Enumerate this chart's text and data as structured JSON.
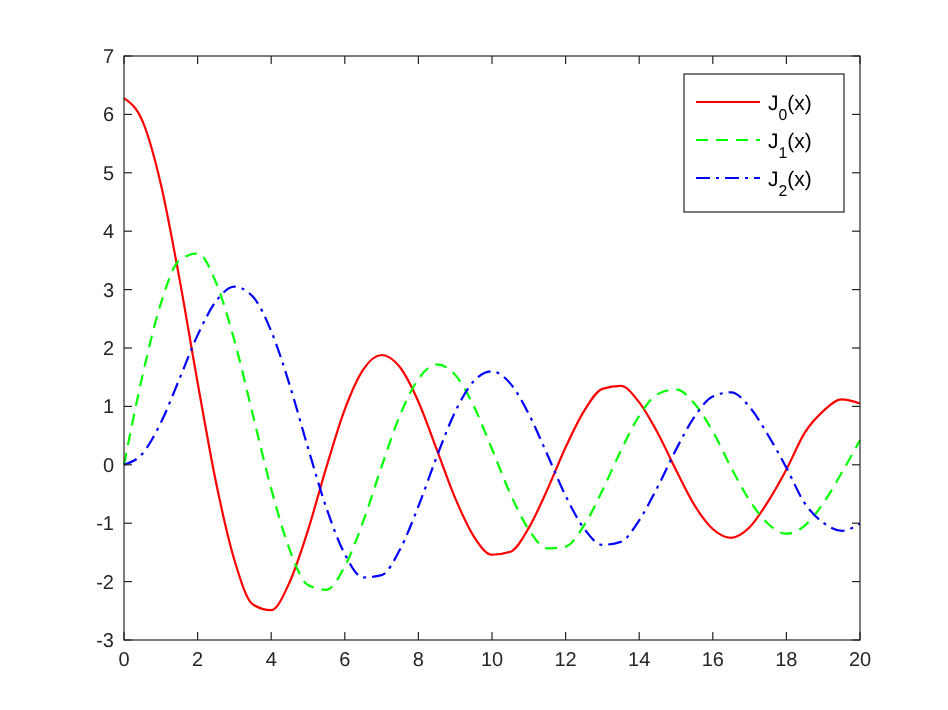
{
  "chart_data": {
    "type": "line",
    "x": [
      0,
      0.5,
      1,
      1.5,
      2,
      2.5,
      3,
      3.5,
      4,
      4.5,
      5,
      5.5,
      6,
      6.5,
      7,
      7.5,
      8,
      8.5,
      9,
      9.5,
      10,
      10.5,
      11,
      11.5,
      12,
      12.5,
      13,
      13.5,
      14,
      14.5,
      15,
      15.5,
      16,
      16.5,
      17,
      17.5,
      18,
      18.5,
      19,
      19.5,
      20
    ],
    "series": [
      {
        "name": "J$_{0}$(x)",
        "color": "#ff0000",
        "line_style": "solid",
        "values": [
          6.28,
          5.89,
          4.81,
          3.21,
          1.41,
          -0.3,
          -1.63,
          -2.39,
          -2.49,
          -2.01,
          -1.12,
          -0.04,
          0.95,
          1.63,
          1.88,
          1.67,
          1.08,
          0.26,
          -0.57,
          -1.22,
          -1.54,
          -1.49,
          -1.08,
          -0.43,
          0.3,
          0.92,
          1.3,
          1.35,
          1.07,
          0.55,
          -0.09,
          -0.69,
          -1.1,
          -1.25,
          -1.07,
          -0.63,
          -0.08,
          0.55,
          0.92,
          1.12,
          1.05
        ]
      },
      {
        "name": "J$_{1}$(x)",
        "color": "#00ff00",
        "line_style": "dashed",
        "values": [
          0,
          1.52,
          2.76,
          3.5,
          3.62,
          3.12,
          2.13,
          0.86,
          -0.41,
          -1.45,
          -2.06,
          -2.14,
          -1.74,
          -0.97,
          -0.03,
          0.85,
          1.47,
          1.72,
          1.54,
          1.01,
          0.27,
          -0.5,
          -1.11,
          -1.43,
          -1.4,
          -1.04,
          -0.44,
          0.24,
          0.84,
          1.21,
          1.29,
          1.05,
          0.57,
          -0.05,
          -0.61,
          -1.01,
          -1.18,
          -1.04,
          -0.66,
          -0.14,
          0.42
        ]
      },
      {
        "name": "J$_{2}$(x)",
        "color": "#0000ff",
        "line_style": "dashdot",
        "values": [
          0,
          0.19,
          0.72,
          1.46,
          2.22,
          2.8,
          3.05,
          2.88,
          2.29,
          1.37,
          0.29,
          -0.74,
          -1.53,
          -1.93,
          -1.89,
          -1.45,
          -0.71,
          0.14,
          0.91,
          1.43,
          1.6,
          1.39,
          0.87,
          0.18,
          -0.53,
          -1.09,
          -1.37,
          -1.32,
          -0.95,
          -0.38,
          0.26,
          0.82,
          1.17,
          1.24,
          0.99,
          0.51,
          -0.05,
          -0.66,
          -0.99,
          -1.13,
          -1.01
        ]
      }
    ],
    "xlim": [
      0,
      20
    ],
    "xticks": [
      0,
      2,
      4,
      6,
      8,
      10,
      12,
      14,
      16,
      18,
      20
    ],
    "ylim": [
      -3,
      7
    ],
    "yticks": [
      -3,
      -2,
      -1,
      0,
      1,
      2,
      3,
      4,
      5,
      6,
      7
    ],
    "legend": "top right"
  }
}
